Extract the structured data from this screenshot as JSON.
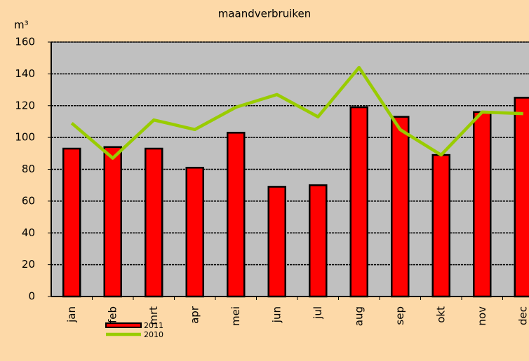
{
  "chart_data": {
    "type": "bar",
    "title": "maandverbruiken",
    "y_label": "m³",
    "categories": [
      "jan",
      "feb",
      "mrt",
      "apr",
      "mei",
      "jun",
      "jul",
      "aug",
      "sep",
      "okt",
      "nov",
      "dec"
    ],
    "series": [
      {
        "name": "2011",
        "type": "bar",
        "color": "#ff0000",
        "values": [
          93,
          94,
          93,
          81,
          103,
          69,
          70,
          119,
          113,
          89,
          116,
          125
        ]
      },
      {
        "name": "2010",
        "type": "line",
        "color": "#99cc00",
        "values": [
          109,
          87,
          111,
          105,
          119,
          127,
          113,
          144,
          105,
          89,
          116,
          115
        ]
      }
    ],
    "ylim": [
      0,
      160
    ],
    "yticks": [
      0,
      20,
      40,
      60,
      80,
      100,
      120,
      140,
      160
    ],
    "grid": true
  }
}
